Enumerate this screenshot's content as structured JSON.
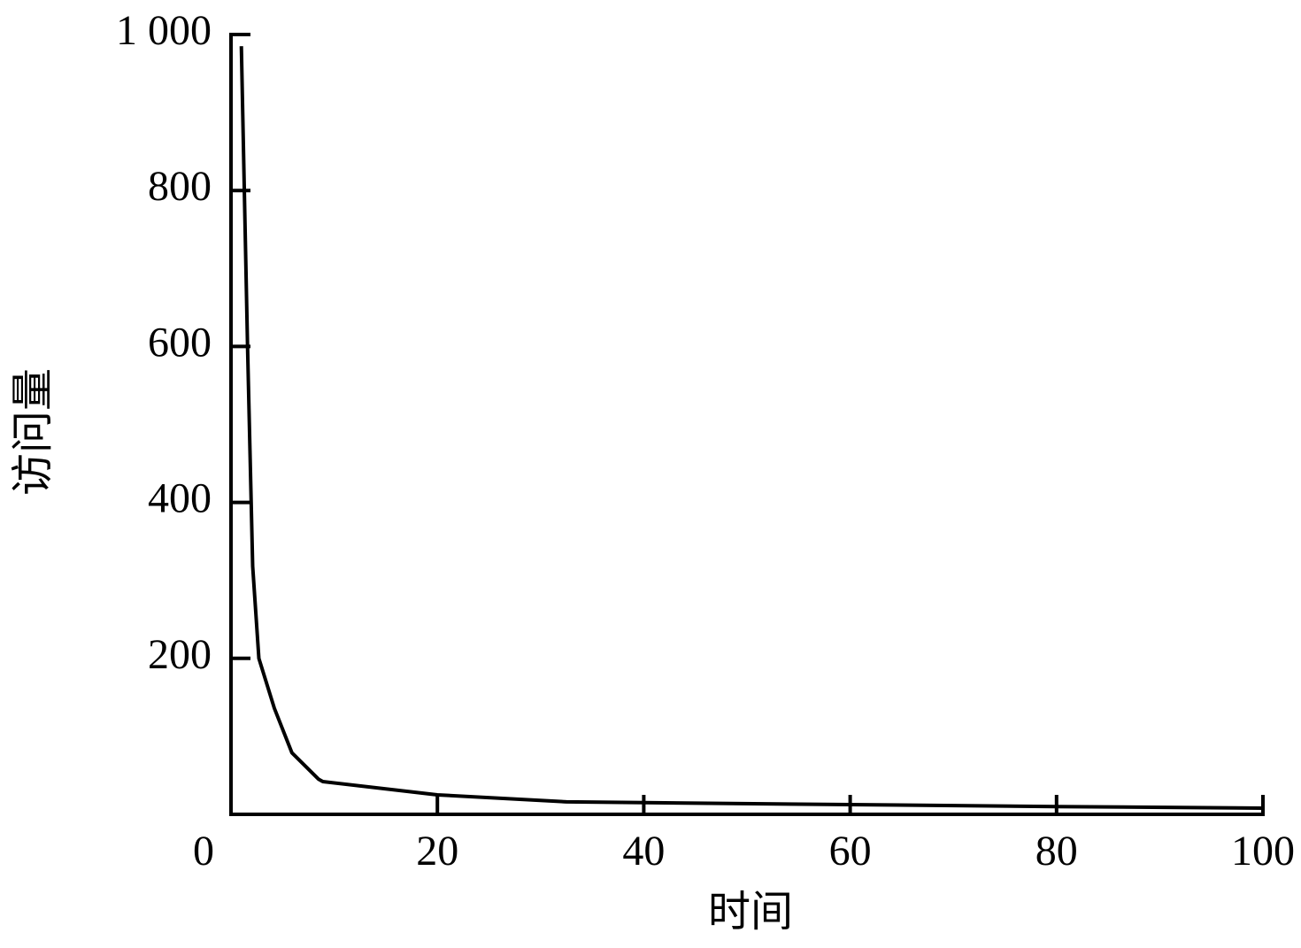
{
  "chart_data": {
    "type": "line",
    "x_label": "时间",
    "y_label": "访问量",
    "x": [
      1,
      1.6,
      2.1,
      2.7,
      4.2,
      5.9,
      8.5,
      8.9,
      20,
      32.5,
      40,
      60,
      80,
      100
    ],
    "values": [
      985,
      600,
      318,
      200,
      136,
      79,
      45,
      42,
      25,
      16,
      15,
      12.5,
      10,
      8
    ],
    "color": "#000000",
    "xlim": [
      0,
      100
    ],
    "xticks": [
      0,
      20,
      40,
      60,
      80,
      100
    ],
    "ylim": [
      0,
      1000
    ],
    "yticks": [
      200,
      400,
      600,
      800,
      {
        "value": 1000,
        "label": "1 000"
      }
    ],
    "grid": false
  }
}
